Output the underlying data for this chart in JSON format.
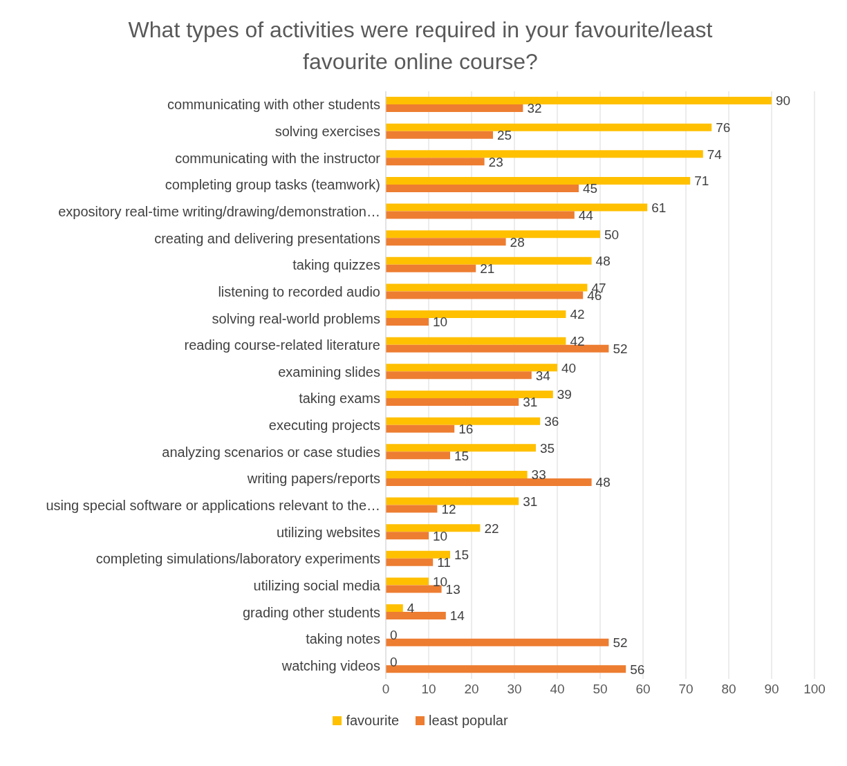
{
  "chart_data": {
    "type": "bar",
    "orientation": "horizontal",
    "title": "What types of activities were required in your favourite/least favourite online course?",
    "categories": [
      "communicating with other students",
      "solving exercises",
      "communicating with the instructor",
      "completing group tasks (teamwork)",
      "expository real-time writing/drawing/demonstration…",
      "creating and delivering presentations",
      "taking quizzes",
      "listening to recorded audio",
      "solving real-world problems",
      "reading course-related literature",
      "examining slides",
      "taking exams",
      "executing projects",
      "analyzing scenarios or case studies",
      "writing papers/reports",
      "using special software or applications relevant to the…",
      "utilizing websites",
      "completing simulations/laboratory experiments",
      "utilizing social media",
      "grading other students",
      "taking notes",
      "watching videos"
    ],
    "series": [
      {
        "name": "favourite",
        "color": "#ffc000",
        "values": [
          90,
          76,
          74,
          71,
          61,
          50,
          48,
          47,
          42,
          42,
          40,
          39,
          36,
          35,
          33,
          31,
          22,
          15,
          10,
          4,
          0,
          0
        ]
      },
      {
        "name": "least popular",
        "color": "#ed7d31",
        "values": [
          32,
          25,
          23,
          45,
          44,
          28,
          21,
          46,
          10,
          52,
          34,
          31,
          16,
          15,
          48,
          12,
          10,
          11,
          13,
          14,
          52,
          56
        ]
      }
    ],
    "xlim": [
      0,
      100
    ],
    "xticks": [
      0,
      10,
      20,
      30,
      40,
      50,
      60,
      70,
      80,
      90,
      100
    ],
    "grid": "x",
    "legend": "bottom",
    "data_labels": true
  }
}
